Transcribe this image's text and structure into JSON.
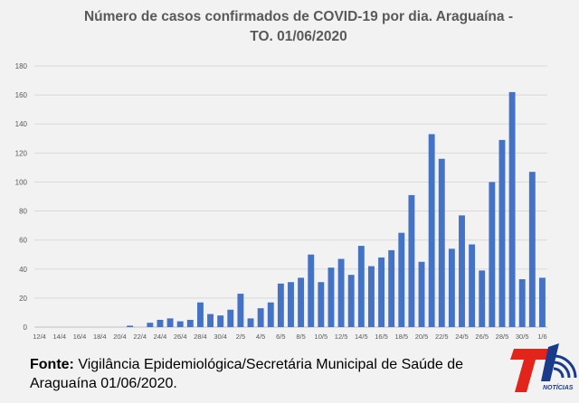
{
  "title_lines": [
    "Número de casos confirmados de COVID-19 por dia. Araguaína -",
    "TO. 01/06/2020"
  ],
  "source": {
    "label": "Fonte:",
    "line1": "Vigilância Epidemiológica/Secretária Municipal de Saúde de",
    "line2": "Araguaína 01/06/2020."
  },
  "logo": {
    "text": "NOTÍCIAS"
  },
  "colors": {
    "bar": "#4472c4",
    "grid": "#d9d9d9",
    "axis_text": "#595959",
    "logo_red": "#e1251b",
    "logo_blue": "#1a3b8c"
  },
  "chart_data": {
    "type": "bar",
    "title": "Número de casos confirmados de COVID-19 por dia. Araguaína - TO. 01/06/2020",
    "xlabel": "",
    "ylabel": "",
    "ylim": [
      0,
      180
    ],
    "yticks": [
      0,
      20,
      40,
      60,
      80,
      100,
      120,
      140,
      160,
      180
    ],
    "grid": true,
    "xtick_labels": [
      "12/4",
      "14/4",
      "16/4",
      "18/4",
      "20/4",
      "22/4",
      "24/4",
      "26/4",
      "28/4",
      "30/4",
      "2/5",
      "4/5",
      "6/5",
      "8/5",
      "10/5",
      "12/5",
      "14/5",
      "16/5",
      "18/5",
      "20/5",
      "22/5",
      "24/5",
      "26/5",
      "28/5",
      "30/5",
      "1/6"
    ],
    "categories": [
      "12/4",
      "13/4",
      "14/4",
      "15/4",
      "16/4",
      "17/4",
      "18/4",
      "19/4",
      "20/4",
      "21/4",
      "22/4",
      "23/4",
      "24/4",
      "25/4",
      "26/4",
      "27/4",
      "28/4",
      "29/4",
      "30/4",
      "1/5",
      "2/5",
      "3/5",
      "4/5",
      "5/5",
      "6/5",
      "7/5",
      "8/5",
      "9/5",
      "10/5",
      "11/5",
      "12/5",
      "13/5",
      "14/5",
      "15/5",
      "16/5",
      "17/5",
      "18/5",
      "19/5",
      "20/5",
      "21/5",
      "22/5",
      "23/5",
      "24/5",
      "25/5",
      "26/5",
      "27/5",
      "28/5",
      "29/5",
      "30/5",
      "31/5",
      "1/6"
    ],
    "values": [
      0,
      0,
      0,
      0,
      0,
      0,
      0,
      0,
      0,
      1,
      0,
      3,
      5,
      6,
      4,
      5,
      17,
      9,
      8,
      12,
      23,
      6,
      13,
      17,
      30,
      31,
      34,
      50,
      31,
      41,
      47,
      36,
      56,
      42,
      48,
      53,
      65,
      91,
      45,
      133,
      116,
      54,
      77,
      57,
      39,
      100,
      129,
      162,
      33,
      107,
      34
    ]
  }
}
